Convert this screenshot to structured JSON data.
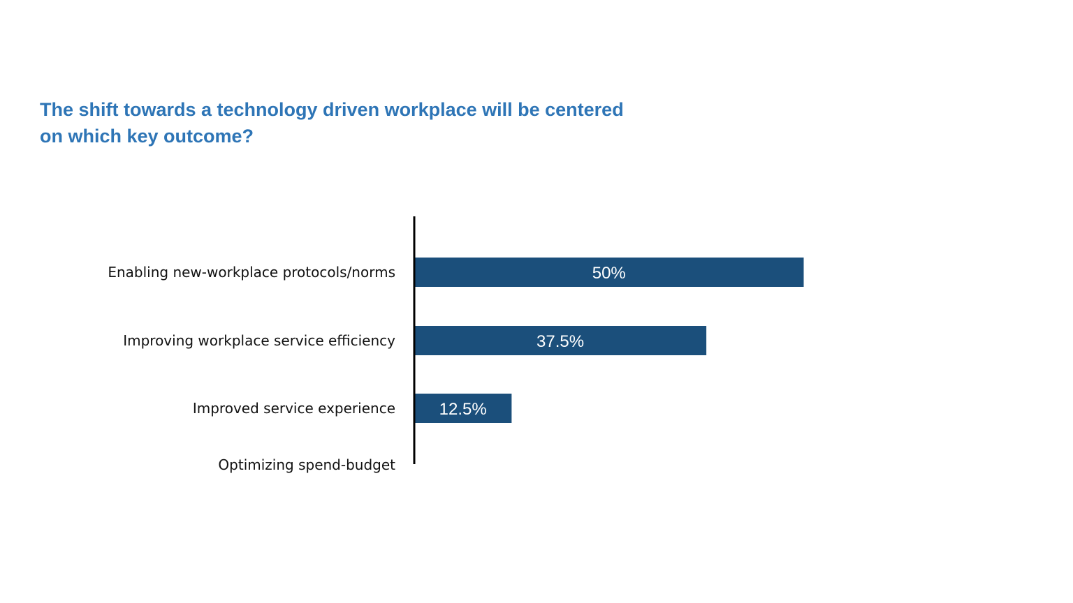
{
  "chart_data": {
    "type": "bar",
    "orientation": "horizontal",
    "title_line1": "The shift towards a technology driven workplace will be centered",
    "title_line2": "on which key outcome?",
    "categories": [
      "Enabling new-workplace protocols/norms",
      "Improving workplace service efficiency",
      "Improved service experience",
      "Optimizing spend-budget"
    ],
    "values": [
      50,
      37.5,
      12.5,
      0
    ],
    "value_labels": [
      "50%",
      "37.5%",
      "12.5%",
      ""
    ],
    "xlim": [
      0,
      100
    ],
    "xlabel": "",
    "ylabel": "",
    "grid": false,
    "legend": "none",
    "bar_color": "#1b4f7b",
    "title_color": "#2e75b6"
  }
}
